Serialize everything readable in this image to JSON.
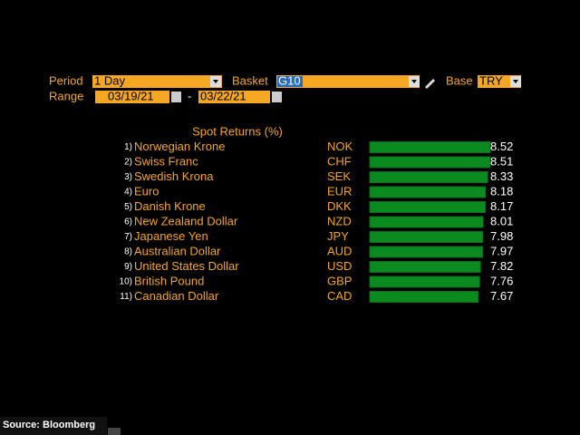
{
  "controls": {
    "period_label": "Period",
    "period": "1 Day",
    "basket_label": "Basket",
    "basket": "G10",
    "base_label": "Base",
    "base": "TRY",
    "range_label": "Range",
    "start_date": "03/19/21",
    "range_separator": "-",
    "end_date": "03/22/21"
  },
  "chart_data": {
    "type": "bar",
    "title": "Spot Returns (%)",
    "color": "#0b8a1f",
    "ranks": [
      "1)",
      "2)",
      "3)",
      "4)",
      "5)",
      "6)",
      "7)",
      "8)",
      "9)",
      "10)",
      "11)"
    ],
    "categories": [
      "Norwegian Krone",
      "Swiss Franc",
      "Swedish Krona",
      "Euro",
      "Danish Krone",
      "New Zealand Dollar",
      "Japanese Yen",
      "Australian Dollar",
      "United States Dollar",
      "British Pound",
      "Canadian Dollar"
    ],
    "codes": [
      "NOK",
      "CHF",
      "SEK",
      "EUR",
      "DKK",
      "NZD",
      "JPY",
      "AUD",
      "USD",
      "GBP",
      "CAD"
    ],
    "values": [
      8.52,
      8.51,
      8.33,
      8.18,
      8.17,
      8.01,
      7.98,
      7.97,
      7.82,
      7.76,
      7.67
    ]
  },
  "source": "Source: Bloomberg"
}
